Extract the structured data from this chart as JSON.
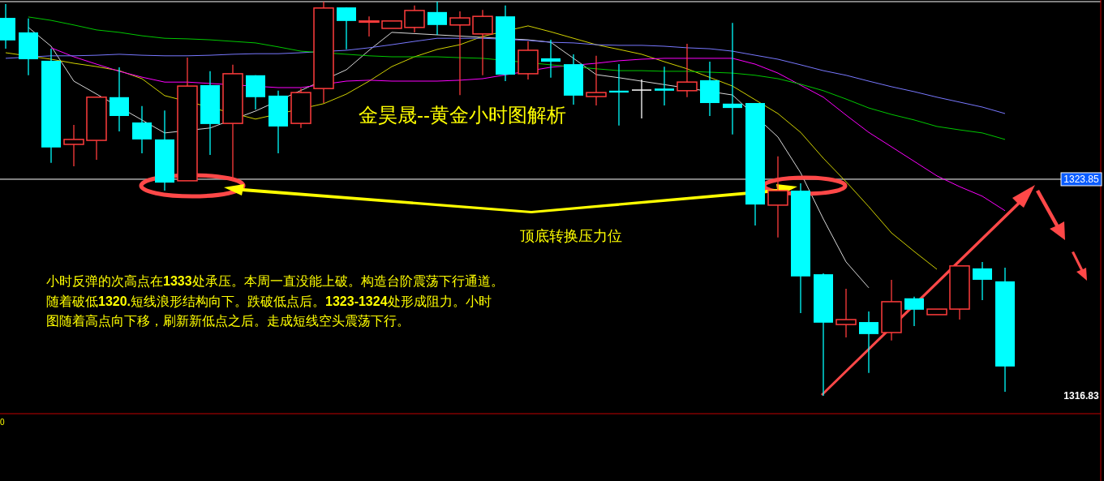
{
  "chart_data": {
    "type": "candlestick",
    "title": "金昊晟--黄金小时图解析",
    "categories": [
      null,
      null,
      null,
      null,
      null,
      null,
      null,
      null,
      null,
      null,
      null,
      null,
      null,
      null,
      null,
      null,
      null,
      null,
      null,
      null,
      null,
      null,
      null,
      null,
      null,
      null,
      null,
      null,
      null,
      null,
      null,
      null,
      null,
      null,
      null,
      null,
      null,
      null,
      null,
      null,
      null,
      null,
      null,
      null,
      null
    ],
    "ohlc": [
      [
        1329.08,
        1329.53,
        1328.08,
        1328.35
      ],
      [
        1328.61,
        1329.06,
        1327.22,
        1327.74
      ],
      [
        1327.69,
        1328.08,
        1324.38,
        1324.88
      ],
      [
        1324.98,
        1325.61,
        1324.27,
        1325.14
      ],
      [
        1325.11,
        1326.53,
        1324.48,
        1326.51
      ],
      [
        1326.51,
        1327.48,
        1325.4,
        1325.9
      ],
      [
        1325.69,
        1326.22,
        1324.69,
        1325.14
      ],
      [
        1325.14,
        1326.08,
        1323.48,
        1323.74
      ],
      [
        1323.8,
        1327.79,
        1323.8,
        1326.87
      ],
      [
        1326.9,
        1327.35,
        1324.64,
        1325.64
      ],
      [
        1325.66,
        1327.56,
        1323.82,
        1327.27
      ],
      [
        1327.22,
        1327.22,
        1326.11,
        1326.51
      ],
      [
        1326.56,
        1326.72,
        1324.69,
        1325.56
      ],
      [
        1325.66,
        1326.79,
        1325.51,
        1326.66
      ],
      [
        1326.79,
        1329.61,
        1326.32,
        1329.4
      ],
      [
        1329.42,
        1329.42,
        1328.06,
        1328.98
      ],
      [
        1328.95,
        1329.13,
        1328.48,
        1328.98
      ],
      [
        1328.74,
        1328.98,
        1328.74,
        1328.98
      ],
      [
        1328.77,
        1329.48,
        1328.61,
        1329.32
      ],
      [
        1329.27,
        1329.61,
        1328.53,
        1328.85
      ],
      [
        1328.85,
        1329.29,
        1326.58,
        1329.08
      ],
      [
        1328.56,
        1329.34,
        1327.22,
        1329.13
      ],
      [
        1329.13,
        1329.48,
        1327.03,
        1327.24
      ],
      [
        1327.27,
        1328.32,
        1327.08,
        1328.03
      ],
      [
        1327.77,
        1328.37,
        1327.14,
        1327.66
      ],
      [
        1327.58,
        1327.9,
        1326.27,
        1326.56
      ],
      [
        1326.53,
        1327.85,
        1326.24,
        1326.66
      ],
      [
        1326.72,
        1327.58,
        1325.59,
        1326.66
      ],
      [
        1326.74,
        1327.08,
        1325.82,
        1326.74
      ],
      [
        1326.79,
        1327.5,
        1326.24,
        1326.72
      ],
      [
        1326.72,
        1328.24,
        1326.51,
        1327.0
      ],
      [
        1327.06,
        1327.66,
        1325.9,
        1326.32
      ],
      [
        1326.3,
        1328.92,
        1325.3,
        1326.16
      ],
      [
        1326.32,
        1326.32,
        1322.35,
        1323.03
      ],
      [
        1323.01,
        1324.59,
        1321.96,
        1323.48
      ],
      [
        1323.48,
        1323.72,
        1319.51,
        1320.7
      ],
      [
        1320.77,
        1320.8,
        1316.83,
        1319.2
      ],
      [
        1319.14,
        1320.3,
        1318.72,
        1319.3
      ],
      [
        1319.22,
        1319.56,
        1317.57,
        1318.83
      ],
      [
        1318.88,
        1320.59,
        1318.62,
        1319.88
      ],
      [
        1319.99,
        1320.04,
        1319.09,
        1319.62
      ],
      [
        1319.46,
        1319.64,
        1319.46,
        1319.64
      ],
      [
        1319.64,
        1321.04,
        1319.3,
        1321.04
      ],
      [
        1320.96,
        1321.17,
        1319.93,
        1320.59
      ],
      [
        1320.54,
        1320.98,
        1316.96,
        1317.78
      ]
    ],
    "colors": [
      "#00ffff",
      "#00ffff",
      "#00ffff",
      "#ff3c3c",
      "#ff3c3c",
      "#00ffff",
      "#00ffff",
      "#00ffff",
      "#ff3c3c",
      "#00ffff",
      "#ff3c3c",
      "#00ffff",
      "#00ffff",
      "#ff3c3c",
      "#ff3c3c",
      "#00ffff",
      "#ff3c3c",
      "#ff3c3c",
      "#ff3c3c",
      "#00ffff",
      "#ff3c3c",
      "#ff3c3c",
      "#00ffff",
      "#ff3c3c",
      "#00ffff",
      "#00ffff",
      "#ff3c3c",
      "#00ffff",
      "#ffffff",
      "#00ffff",
      "#ff3c3c",
      "#00ffff",
      "#00ffff",
      "#00ffff",
      "#ff3c3c",
      "#00ffff",
      "#00ffff",
      "#ff3c3c",
      "#00ffff",
      "#ff3c3c",
      "#00ffff",
      "#ff3c3c",
      "#ff3c3c",
      "#00ffff",
      "#00ffff"
    ],
    "series": [
      {
        "type": "line",
        "color": "#d8d8d8",
        "values": [
          null,
          1328.77,
          1328.16,
          1327.03,
          null,
          null,
          null,
          1325.35,
          null,
          1325.51,
          null,
          1326.06,
          null,
          null,
          null,
          1327.4,
          1328.03,
          1328.61,
          null,
          null,
          null,
          null,
          null,
          1328.37,
          1328.29,
          1327.77,
          1327.24,
          1327.14,
          null,
          null,
          null,
          null,
          1326.58,
          null,
          1325.22,
          1324.06,
          1322.56,
          1321.17,
          1320.33,
          null,
          null,
          null,
          null,
          null,
          null
        ]
      },
      {
        "type": "line",
        "color": "#d2d200",
        "values": [
          1327.95,
          null,
          1327.74,
          1327.61,
          1327.5,
          1327.37,
          1327.11,
          1326.56,
          null,
          null,
          null,
          1325.8,
          null,
          null,
          1326.3,
          1326.61,
          1327.03,
          1327.5,
          1327.82,
          1328.06,
          1328.21,
          1328.48,
          null,
          1328.82,
          1328.63,
          1328.42,
          1328.21,
          1328.06,
          1327.9,
          1327.66,
          1327.43,
          null,
          1326.87,
          null,
          1325.98,
          1325.37,
          1324.53,
          1323.77,
          1322.96,
          1322.11,
          1321.51,
          1320.93,
          null,
          null,
          null
        ]
      },
      {
        "type": "line",
        "color": "#ff00ff",
        "values": [
          null,
          null,
          1328.11,
          1327.82,
          1327.58,
          1327.35,
          1327.16,
          1327.0,
          1327.0,
          null,
          null,
          null,
          1326.82,
          1326.82,
          null,
          1327.03,
          1327.06,
          1327.03,
          1327.03,
          1327.03,
          1327.06,
          1327.11,
          null,
          null,
          1327.48,
          null,
          1327.61,
          1327.69,
          1327.74,
          1327.77,
          1327.77,
          1327.77,
          1327.77,
          1327.58,
          1327.29,
          1326.9,
          1326.51,
          1325.93,
          1325.37,
          1324.9,
          1324.43,
          1323.96,
          1323.61,
          1323.3,
          1322.83
        ]
      },
      {
        "type": "line",
        "color": "#7878ff",
        "values": [
          1327.77,
          null,
          1327.85,
          1327.85,
          1327.87,
          1327.9,
          1327.87,
          1327.85,
          1327.85,
          1327.87,
          1327.9,
          1327.92,
          1327.92,
          1327.95,
          null,
          1328.03,
          1328.11,
          1328.21,
          1328.32,
          1328.42,
          1328.42,
          1328.42,
          null,
          1328.35,
          1328.29,
          1328.27,
          1328.21,
          1328.19,
          1328.19,
          1328.16,
          1328.11,
          1328.08,
          1328.0,
          1327.87,
          1327.74,
          1327.56,
          1327.37,
          1327.22,
          1327.03,
          1326.85,
          1326.69,
          1326.51,
          1326.35,
          1326.19,
          1325.98
        ]
      },
      {
        "type": "line",
        "color": "#00c800",
        "values": [
          null,
          1329.11,
          1329.0,
          1328.85,
          1328.69,
          1328.61,
          1328.5,
          1328.42,
          1328.4,
          1328.37,
          1328.32,
          1328.27,
          1328.14,
          1328.0,
          null,
          1327.9,
          1327.85,
          1327.82,
          1327.82,
          1327.82,
          1327.79,
          1327.77,
          null,
          null,
          1327.56,
          null,
          1327.43,
          1327.37,
          1327.37,
          1327.35,
          1327.35,
          1327.32,
          1327.29,
          1327.22,
          1327.11,
          1326.93,
          1326.72,
          1326.45,
          1326.16,
          1325.95,
          1325.77,
          1325.56,
          1325.45,
          1325.35,
          1325.14
        ]
      }
    ],
    "ylim": [
      1316.25,
      1329.66
    ],
    "yticks": [
      {
        "value": 1316.83,
        "label": "1316.83"
      },
      {
        "value": 1323.85,
        "label": "1323.85"
      }
    ],
    "tick_labels": "y",
    "ref_lines": [
      {
        "axis": "y",
        "value": 1323.85,
        "color": "#ffffff"
      }
    ],
    "annotations": [
      "顶底转换压力位",
      "小时反弹的次高点在**1333**处承压。本周一直没能上破。构造台阶震荡下行通道。",
      "随着破低**1320.**短线浪形结构向下。跌破低点后。**1323-1324**处形成阻力。小时",
      "图随着高点向下移，刷新新低点之后。走成短线空头震荡下行。",
      "0"
    ]
  }
}
